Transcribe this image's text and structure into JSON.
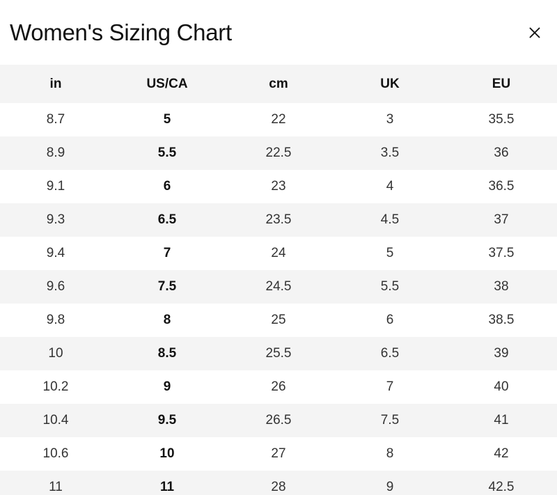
{
  "modal": {
    "title": "Women's Sizing Chart",
    "close_icon": "close-icon"
  },
  "table": {
    "columns": [
      "in",
      "US/CA",
      "cm",
      "UK",
      "EU"
    ],
    "bold_column_index": 1,
    "rows": [
      [
        "8.7",
        "5",
        "22",
        "3",
        "35.5"
      ],
      [
        "8.9",
        "5.5",
        "22.5",
        "3.5",
        "36"
      ],
      [
        "9.1",
        "6",
        "23",
        "4",
        "36.5"
      ],
      [
        "9.3",
        "6.5",
        "23.5",
        "4.5",
        "37"
      ],
      [
        "9.4",
        "7",
        "24",
        "5",
        "37.5"
      ],
      [
        "9.6",
        "7.5",
        "24.5",
        "5.5",
        "38"
      ],
      [
        "9.8",
        "8",
        "25",
        "6",
        "38.5"
      ],
      [
        "10",
        "8.5",
        "25.5",
        "6.5",
        "39"
      ],
      [
        "10.2",
        "9",
        "26",
        "7",
        "40"
      ],
      [
        "10.4",
        "9.5",
        "26.5",
        "7.5",
        "41"
      ],
      [
        "10.6",
        "10",
        "27",
        "8",
        "42"
      ],
      [
        "11",
        "11",
        "28",
        "9",
        "42.5"
      ]
    ],
    "colors": {
      "stripe_bg": "#f4f4f4",
      "header_bg": "#f4f4f4",
      "text": "#333333",
      "emphasis_text": "#121212"
    }
  }
}
